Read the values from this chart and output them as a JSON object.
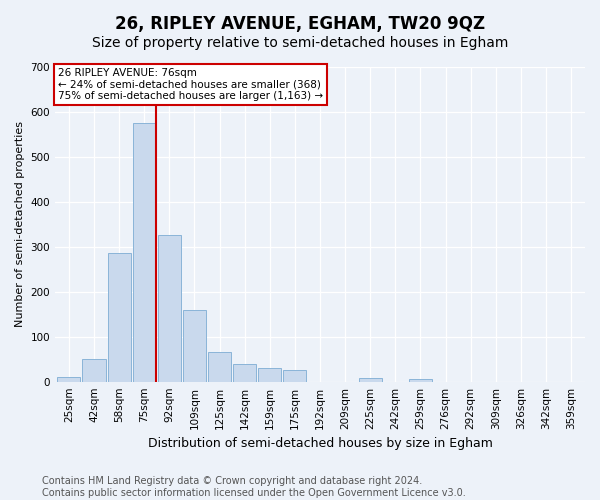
{
  "title": "26, RIPLEY AVENUE, EGHAM, TW20 9QZ",
  "subtitle": "Size of property relative to semi-detached houses in Egham",
  "xlabel": "Distribution of semi-detached houses by size in Egham",
  "ylabel": "Number of semi-detached properties",
  "bar_labels": [
    "25sqm",
    "42sqm",
    "58sqm",
    "75sqm",
    "92sqm",
    "109sqm",
    "125sqm",
    "142sqm",
    "159sqm",
    "175sqm",
    "192sqm",
    "209sqm",
    "225sqm",
    "242sqm",
    "259sqm",
    "276sqm",
    "292sqm",
    "309sqm",
    "326sqm",
    "342sqm",
    "359sqm"
  ],
  "bar_values": [
    10,
    50,
    285,
    575,
    325,
    160,
    65,
    40,
    30,
    27,
    0,
    0,
    8,
    0,
    5,
    0,
    0,
    0,
    0,
    0,
    0
  ],
  "bar_color": "#c9d9ed",
  "bar_edge_color": "#8ab4d8",
  "annotation_text": "26 RIPLEY AVENUE: 76sqm\n← 24% of semi-detached houses are smaller (368)\n75% of semi-detached houses are larger (1,163) →",
  "annotation_box_color": "#ffffff",
  "annotation_box_edge_color": "#cc0000",
  "vline_color": "#cc0000",
  "background_color": "#edf2f9",
  "plot_bg_color": "#edf2f9",
  "ylim": [
    0,
    700
  ],
  "yticks": [
    0,
    100,
    200,
    300,
    400,
    500,
    600,
    700
  ],
  "footer": "Contains HM Land Registry data © Crown copyright and database right 2024.\nContains public sector information licensed under the Open Government Licence v3.0.",
  "title_fontsize": 12,
  "subtitle_fontsize": 10,
  "xlabel_fontsize": 9,
  "ylabel_fontsize": 8,
  "annot_fontsize": 7.5,
  "tick_fontsize": 7.5,
  "footer_fontsize": 7
}
